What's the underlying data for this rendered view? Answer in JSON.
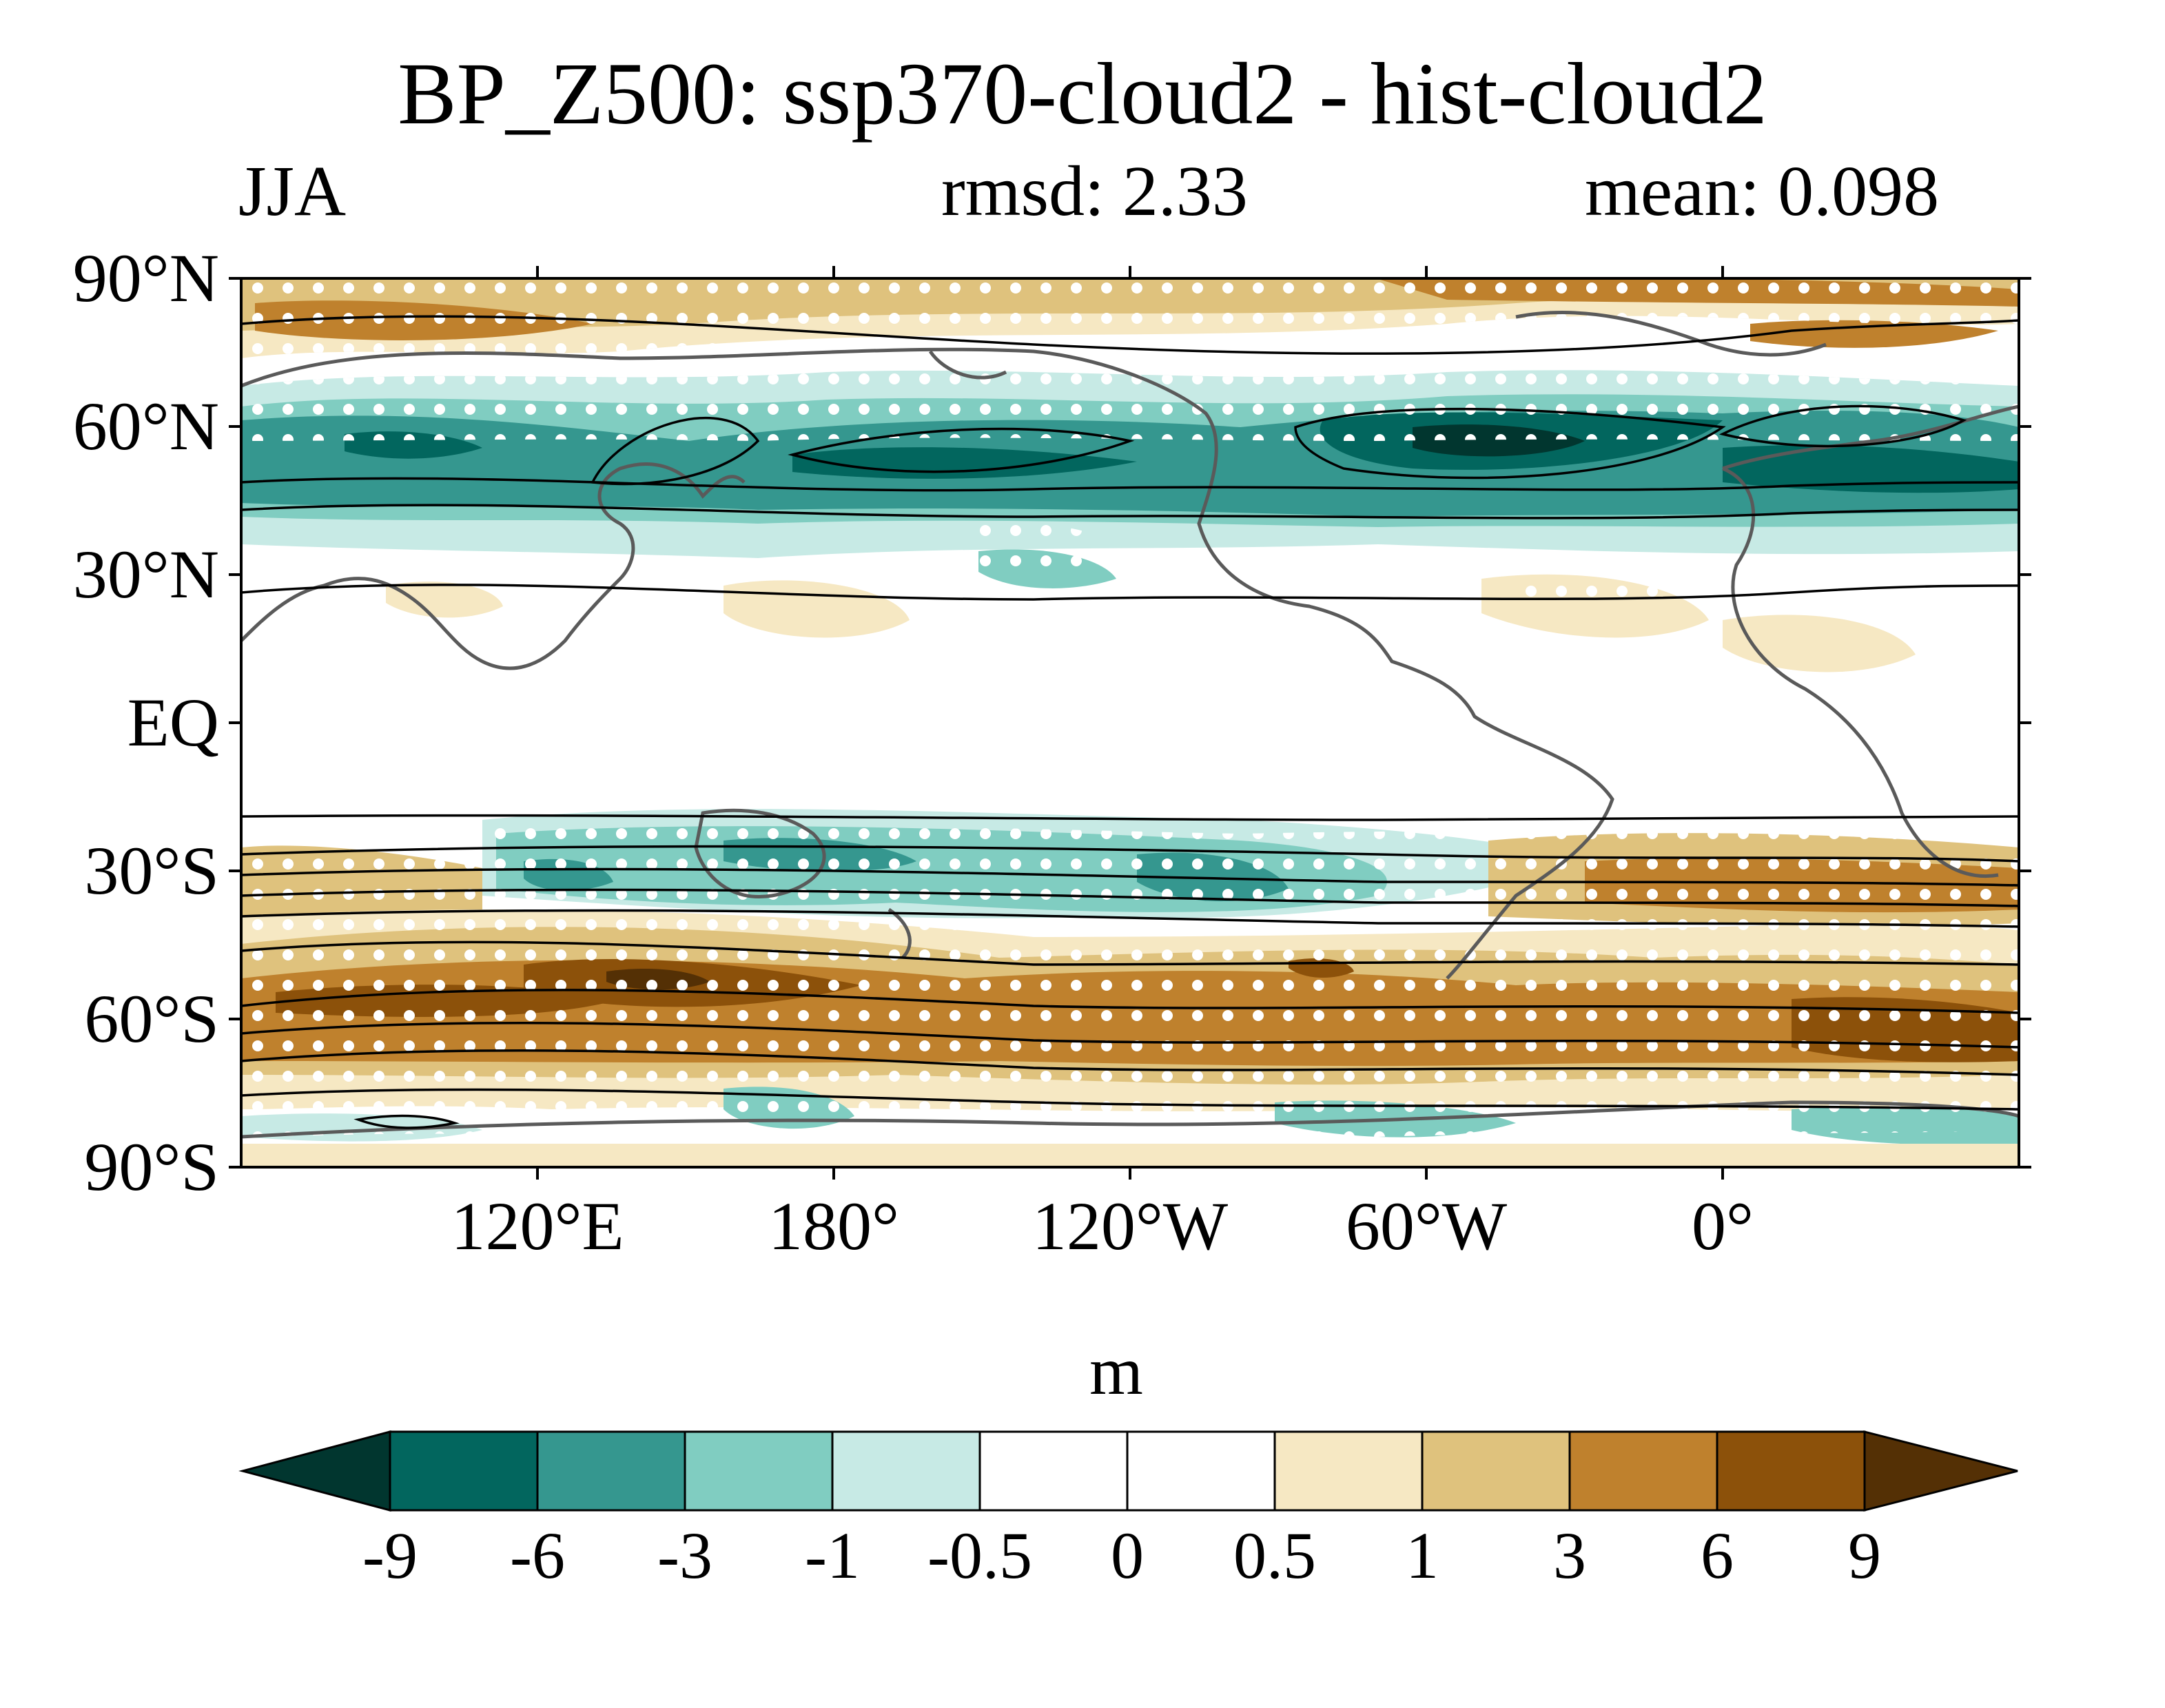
{
  "title": "BP_Z500: ssp370-cloud2 - hist-cloud2",
  "season": "JJA",
  "rmsd_label": "rmsd: 2.33",
  "mean_label": "mean: 0.098",
  "units": "m",
  "lat_labels": [
    "90°N",
    "60°N",
    "30°N",
    "EQ",
    "30°S",
    "60°S",
    "90°S"
  ],
  "lon_labels": [
    "120°E",
    "180°",
    "120°W",
    "60°W",
    "0°"
  ],
  "colorbar": {
    "levels": [
      "-9",
      "-6",
      "-3",
      "-1",
      "-0.5",
      "0",
      "0.5",
      "1",
      "3",
      "6",
      "9"
    ],
    "colors": [
      "#01362f",
      "#02665e",
      "#35978f",
      "#80cdc1",
      "#c7eae5",
      "#ffffff",
      "#ffffff",
      "#f6e8c3",
      "#dfc27d",
      "#bf812d",
      "#8c510a",
      "#543005"
    ]
  },
  "map": {
    "lon_range": [
      60,
      420
    ],
    "lat_range": [
      -90,
      90
    ],
    "stippling": "significance",
    "contours": "climatology"
  }
}
